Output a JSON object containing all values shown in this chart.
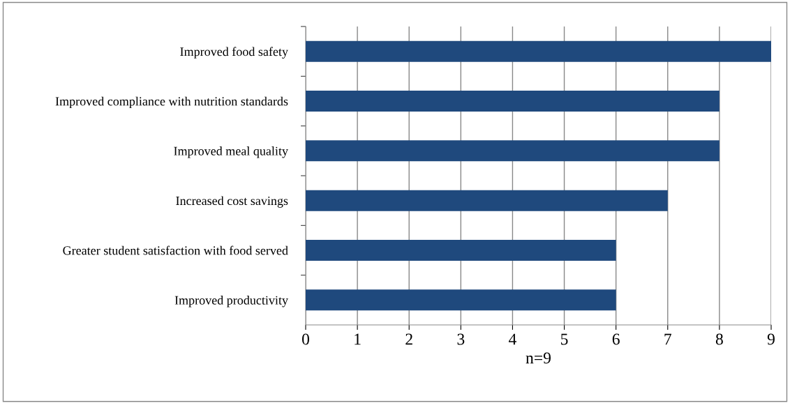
{
  "chart_data": {
    "type": "bar",
    "orientation": "horizontal",
    "categories": [
      "Improved food safety",
      "Improved compliance with nutrition standards",
      "Improved meal quality",
      "Increased cost savings",
      "Greater student satisfaction with food served",
      "Improved productivity"
    ],
    "values": [
      9,
      8,
      8,
      7,
      6,
      6
    ],
    "color": "#1f497d",
    "xlim": [
      0,
      9
    ],
    "xticks": [
      0,
      1,
      2,
      3,
      4,
      5,
      6,
      7,
      8,
      9
    ],
    "grid": "x",
    "xlabel": "n=9",
    "legend": false
  }
}
